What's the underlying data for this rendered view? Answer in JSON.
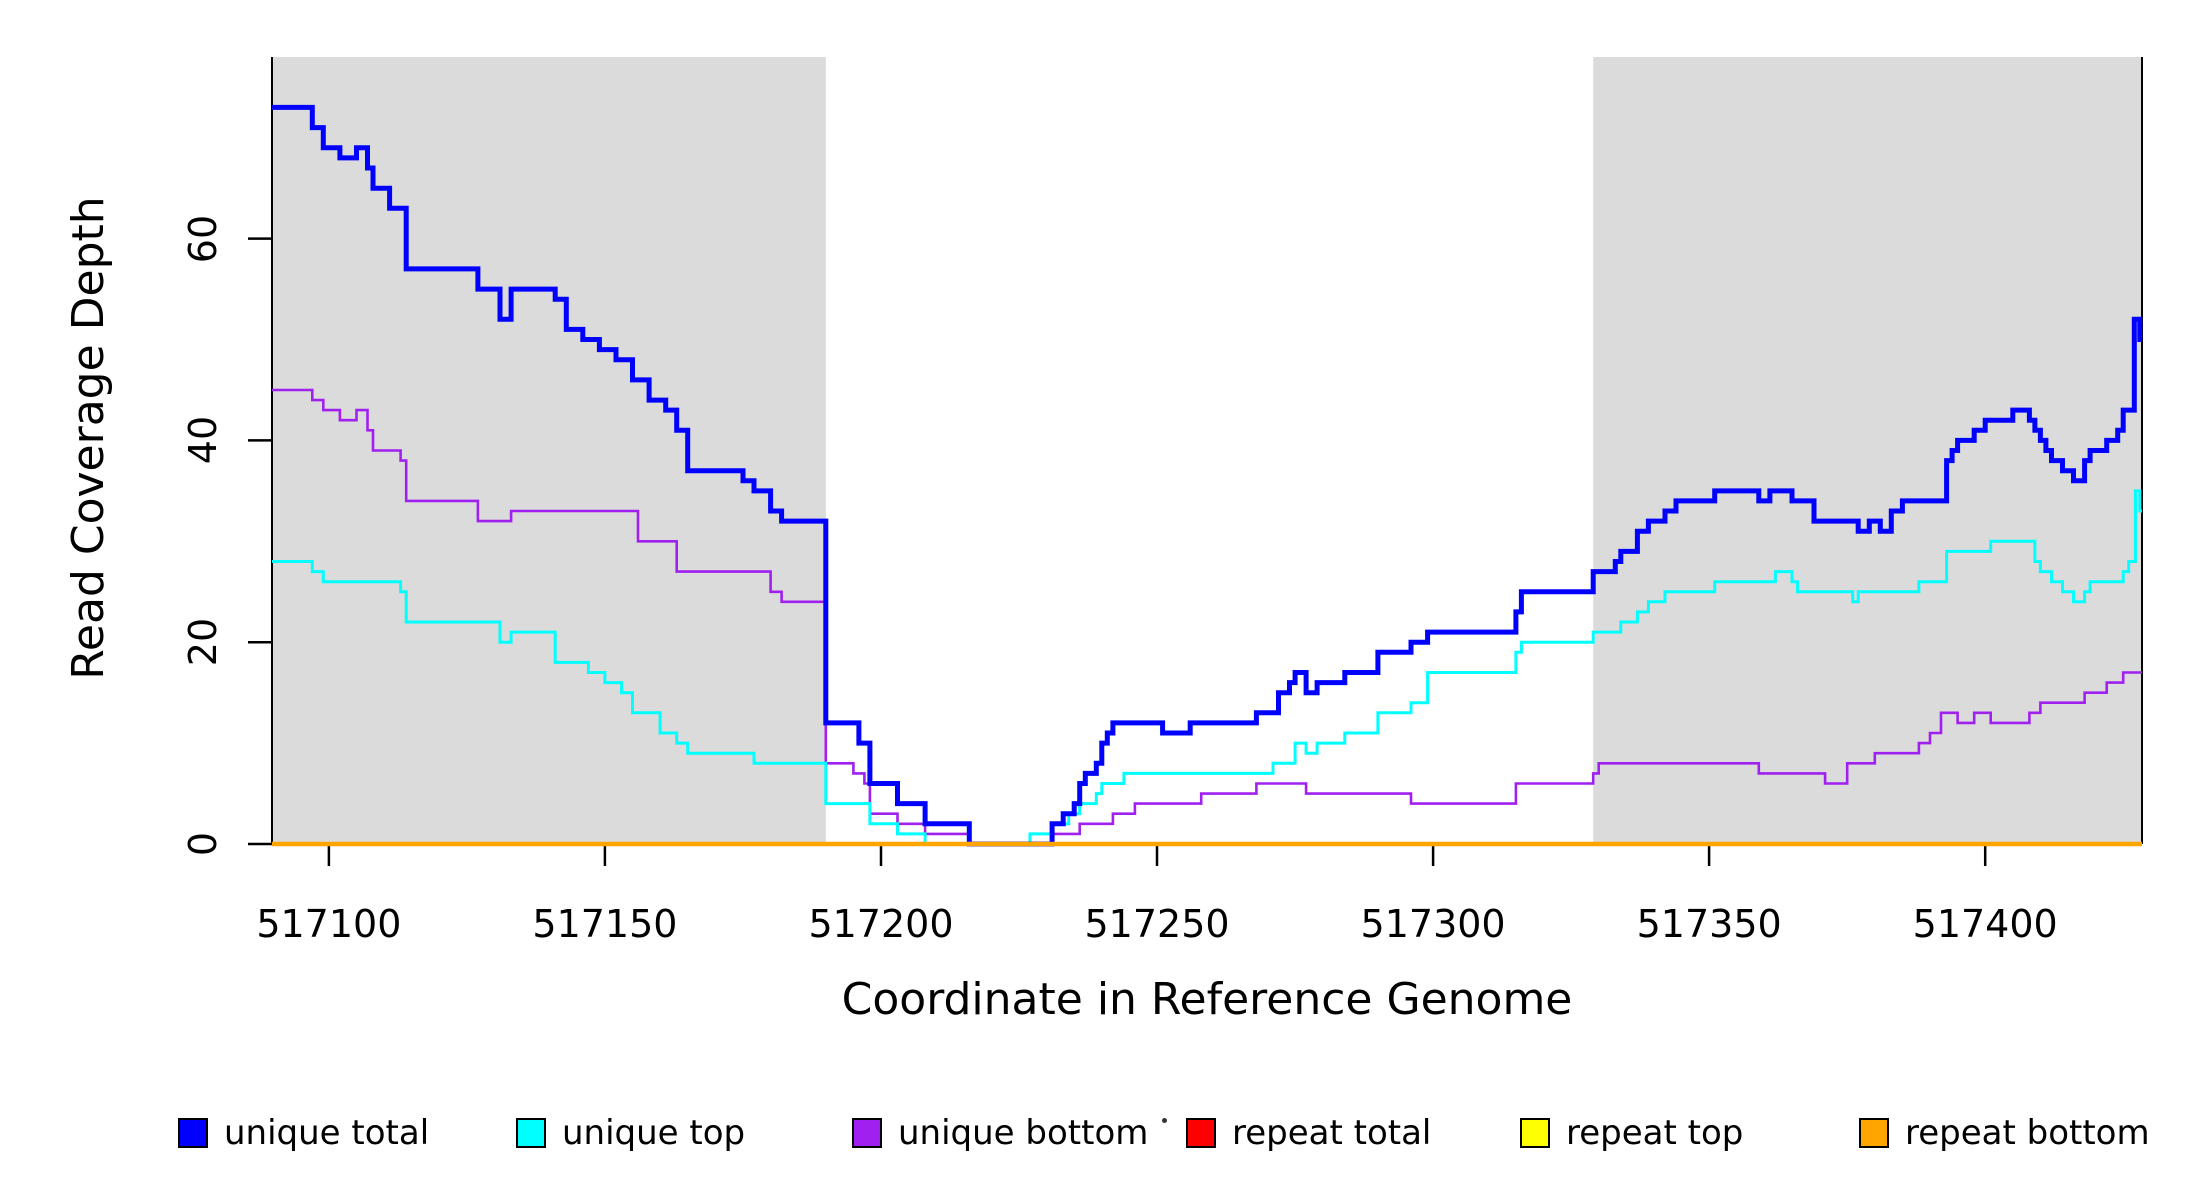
{
  "legend": {
    "items": [
      {
        "label": "unique total",
        "color": "#0000FF"
      },
      {
        "label": "unique top",
        "color": "#00FFFF"
      },
      {
        "label": "unique bottom",
        "color": "#A020F0"
      },
      {
        "label": "repeat total",
        "color": "#FF0000"
      },
      {
        "label": "repeat top",
        "color": "#FFFF00"
      },
      {
        "label": "repeat bottom",
        "color": "#FFA500"
      }
    ]
  },
  "chart_data": {
    "type": "line",
    "subtype": "step-after-coverage-plot",
    "title": "",
    "x_axis": {
      "label": "Coordinate in Reference Genome",
      "ticks": [
        517100,
        517150,
        517200,
        517250,
        517300,
        517350,
        517400
      ],
      "range": [
        517089.7,
        517428.4
      ]
    },
    "y_axis": {
      "label": "Read Coverage Depth",
      "ticks": [
        0,
        20,
        40,
        60
      ],
      "range": [
        0,
        78
      ]
    },
    "grid": false,
    "legend_position": "bottom-horizontal",
    "shaded_regions": {
      "color": "#DBDBDB",
      "intervals": [
        [
          517089.7,
          517190
        ],
        [
          517329,
          517428.4
        ]
      ]
    },
    "axis_color": "#000000",
    "draw_order": [
      "repeat total",
      "repeat top",
      "unique bottom",
      "unique top",
      "unique total",
      "repeat bottom"
    ],
    "series": [
      {
        "name": "unique total",
        "color": "#0000FF",
        "stroke_width": 5,
        "points": [
          [
            517089.7,
            73
          ],
          [
            517097,
            71
          ],
          [
            517099,
            69
          ],
          [
            517102,
            68
          ],
          [
            517105,
            69
          ],
          [
            517107,
            67
          ],
          [
            517108,
            65
          ],
          [
            517111,
            63
          ],
          [
            517114,
            57
          ],
          [
            517127,
            55
          ],
          [
            517131,
            52
          ],
          [
            517133,
            55
          ],
          [
            517141,
            54
          ],
          [
            517143,
            51
          ],
          [
            517146,
            50
          ],
          [
            517149,
            49
          ],
          [
            517152,
            48
          ],
          [
            517155,
            46
          ],
          [
            517158,
            44
          ],
          [
            517161,
            43
          ],
          [
            517163,
            41
          ],
          [
            517165,
            37
          ],
          [
            517175,
            36
          ],
          [
            517177,
            35
          ],
          [
            517180,
            33
          ],
          [
            517182,
            32
          ],
          [
            517190,
            12
          ],
          [
            517196,
            10
          ],
          [
            517198,
            6
          ],
          [
            517203,
            4
          ],
          [
            517208,
            2
          ],
          [
            517216,
            0
          ],
          [
            517231,
            2
          ],
          [
            517233,
            3
          ],
          [
            517235,
            4
          ],
          [
            517236,
            6
          ],
          [
            517237,
            7
          ],
          [
            517239,
            8
          ],
          [
            517240,
            10
          ],
          [
            517241,
            11
          ],
          [
            517242,
            12
          ],
          [
            517251,
            11
          ],
          [
            517256,
            12
          ],
          [
            517268,
            13
          ],
          [
            517272,
            15
          ],
          [
            517274,
            16
          ],
          [
            517275,
            17
          ],
          [
            517277,
            15
          ],
          [
            517279,
            16
          ],
          [
            517284,
            17
          ],
          [
            517290,
            19
          ],
          [
            517296,
            20
          ],
          [
            517299,
            21
          ],
          [
            517315,
            23
          ],
          [
            517316,
            25
          ],
          [
            517329,
            27
          ],
          [
            517333,
            28
          ],
          [
            517334,
            29
          ],
          [
            517337,
            31
          ],
          [
            517339,
            32
          ],
          [
            517342,
            33
          ],
          [
            517344,
            34
          ],
          [
            517351,
            35
          ],
          [
            517359,
            34
          ],
          [
            517361,
            35
          ],
          [
            517365,
            34
          ],
          [
            517369,
            32
          ],
          [
            517377,
            31
          ],
          [
            517379,
            32
          ],
          [
            517381,
            31
          ],
          [
            517383,
            33
          ],
          [
            517385,
            34
          ],
          [
            517393,
            38
          ],
          [
            517394,
            39
          ],
          [
            517395,
            40
          ],
          [
            517398,
            41
          ],
          [
            517400,
            42
          ],
          [
            517405,
            43
          ],
          [
            517408,
            42
          ],
          [
            517409,
            41
          ],
          [
            517410,
            40
          ],
          [
            517411,
            39
          ],
          [
            517412,
            38
          ],
          [
            517414,
            37
          ],
          [
            517416,
            36
          ],
          [
            517418,
            38
          ],
          [
            517419,
            39
          ],
          [
            517422,
            40
          ],
          [
            517424,
            41
          ],
          [
            517425,
            43
          ],
          [
            517427,
            52
          ],
          [
            517428,
            50
          ]
        ]
      },
      {
        "name": "unique top",
        "color": "#00FFFF",
        "stroke_width": 3,
        "points": [
          [
            517089.7,
            28
          ],
          [
            517097,
            27
          ],
          [
            517099,
            26
          ],
          [
            517113,
            25
          ],
          [
            517114,
            22
          ],
          [
            517131,
            20
          ],
          [
            517133,
            21
          ],
          [
            517141,
            18
          ],
          [
            517147,
            17
          ],
          [
            517150,
            16
          ],
          [
            517153,
            15
          ],
          [
            517155,
            13
          ],
          [
            517160,
            11
          ],
          [
            517163,
            10
          ],
          [
            517165,
            9
          ],
          [
            517177,
            8
          ],
          [
            517190,
            4
          ],
          [
            517198,
            2
          ],
          [
            517203,
            1
          ],
          [
            517208,
            0
          ],
          [
            517227,
            1
          ],
          [
            517231,
            2
          ],
          [
            517234,
            3
          ],
          [
            517236,
            4
          ],
          [
            517239,
            5
          ],
          [
            517240,
            6
          ],
          [
            517244,
            7
          ],
          [
            517271,
            8
          ],
          [
            517275,
            10
          ],
          [
            517277,
            9
          ],
          [
            517279,
            10
          ],
          [
            517284,
            11
          ],
          [
            517290,
            13
          ],
          [
            517296,
            14
          ],
          [
            517299,
            17
          ],
          [
            517315,
            19
          ],
          [
            517316,
            20
          ],
          [
            517329,
            21
          ],
          [
            517334,
            22
          ],
          [
            517337,
            23
          ],
          [
            517339,
            24
          ],
          [
            517342,
            25
          ],
          [
            517351,
            26
          ],
          [
            517362,
            27
          ],
          [
            517365,
            26
          ],
          [
            517366,
            25
          ],
          [
            517376,
            24
          ],
          [
            517377,
            25
          ],
          [
            517388,
            26
          ],
          [
            517393,
            29
          ],
          [
            517401,
            30
          ],
          [
            517409,
            28
          ],
          [
            517410,
            27
          ],
          [
            517412,
            26
          ],
          [
            517414,
            25
          ],
          [
            517416,
            24
          ],
          [
            517418,
            25
          ],
          [
            517419,
            26
          ],
          [
            517425,
            27
          ],
          [
            517426,
            28
          ],
          [
            517427.2,
            35
          ],
          [
            517428,
            33
          ]
        ]
      },
      {
        "name": "unique bottom",
        "color": "#A020F0",
        "stroke_width": 2.6,
        "points": [
          [
            517089.7,
            45
          ],
          [
            517097,
            44
          ],
          [
            517099,
            43
          ],
          [
            517102,
            42
          ],
          [
            517105,
            43
          ],
          [
            517107,
            41
          ],
          [
            517108,
            39
          ],
          [
            517113,
            38
          ],
          [
            517114,
            34
          ],
          [
            517127,
            32
          ],
          [
            517133,
            33
          ],
          [
            517156,
            30
          ],
          [
            517163,
            27
          ],
          [
            517180,
            25
          ],
          [
            517182,
            24
          ],
          [
            517190,
            8
          ],
          [
            517195,
            7
          ],
          [
            517197,
            6
          ],
          [
            517198,
            3
          ],
          [
            517203,
            2
          ],
          [
            517208,
            1
          ],
          [
            517216,
            0
          ],
          [
            517231,
            1
          ],
          [
            517236,
            2
          ],
          [
            517242,
            3
          ],
          [
            517246,
            4
          ],
          [
            517258,
            5
          ],
          [
            517268,
            6
          ],
          [
            517277,
            5
          ],
          [
            517296,
            4
          ],
          [
            517315,
            6
          ],
          [
            517329,
            7
          ],
          [
            517330,
            8
          ],
          [
            517359,
            7
          ],
          [
            517371,
            6
          ],
          [
            517375,
            8
          ],
          [
            517380,
            9
          ],
          [
            517388,
            10
          ],
          [
            517390,
            11
          ],
          [
            517392,
            13
          ],
          [
            517395,
            12
          ],
          [
            517398,
            13
          ],
          [
            517401,
            12
          ],
          [
            517408,
            13
          ],
          [
            517410,
            14
          ],
          [
            517418,
            15
          ],
          [
            517422,
            16
          ],
          [
            517425,
            17
          ]
        ]
      },
      {
        "name": "repeat total",
        "color": "#FF0000",
        "stroke_width": 3,
        "points": [
          [
            517089.7,
            0
          ]
        ]
      },
      {
        "name": "repeat top",
        "color": "#FFFF00",
        "stroke_width": 3,
        "points": [
          [
            517089.7,
            0
          ]
        ]
      },
      {
        "name": "repeat bottom",
        "color": "#FFA500",
        "stroke_width": 4.5,
        "points": [
          [
            517089.7,
            0
          ]
        ]
      }
    ]
  }
}
